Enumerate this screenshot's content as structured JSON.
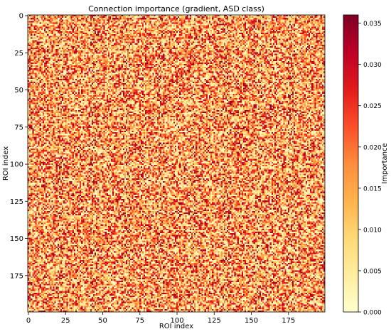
{
  "chart_data": {
    "type": "heatmap",
    "title": "Connection importance (gradient, ASD class)",
    "xlabel": "ROI index",
    "ylabel": "ROI index",
    "x_ticks": [
      0,
      25,
      50,
      75,
      100,
      125,
      150,
      175
    ],
    "y_ticks": [
      0,
      25,
      50,
      75,
      100,
      125,
      150,
      175
    ],
    "matrix_size": [
      200,
      200
    ],
    "x_range": [
      0,
      199
    ],
    "y_range": [
      0,
      199
    ],
    "y_inverted": true,
    "value_range": [
      0.0,
      0.036
    ],
    "colormap": "YlOrRd",
    "colormap_stops": [
      "#ffffcc",
      "#ffeda0",
      "#fed976",
      "#feb24c",
      "#fd8d3c",
      "#fc4e2a",
      "#e31a1c",
      "#bd0026",
      "#800026"
    ],
    "colorbar": {
      "label": "Importance",
      "ticks": [
        0.0,
        0.005,
        0.01,
        0.015,
        0.02,
        0.025,
        0.03,
        0.035
      ],
      "tick_labels": [
        "0.000",
        "0.005",
        "0.010",
        "0.015",
        "0.020",
        "0.025",
        "0.030",
        "0.035"
      ]
    },
    "value_distribution": "noisy, approximately uniform random across the matrix"
  }
}
